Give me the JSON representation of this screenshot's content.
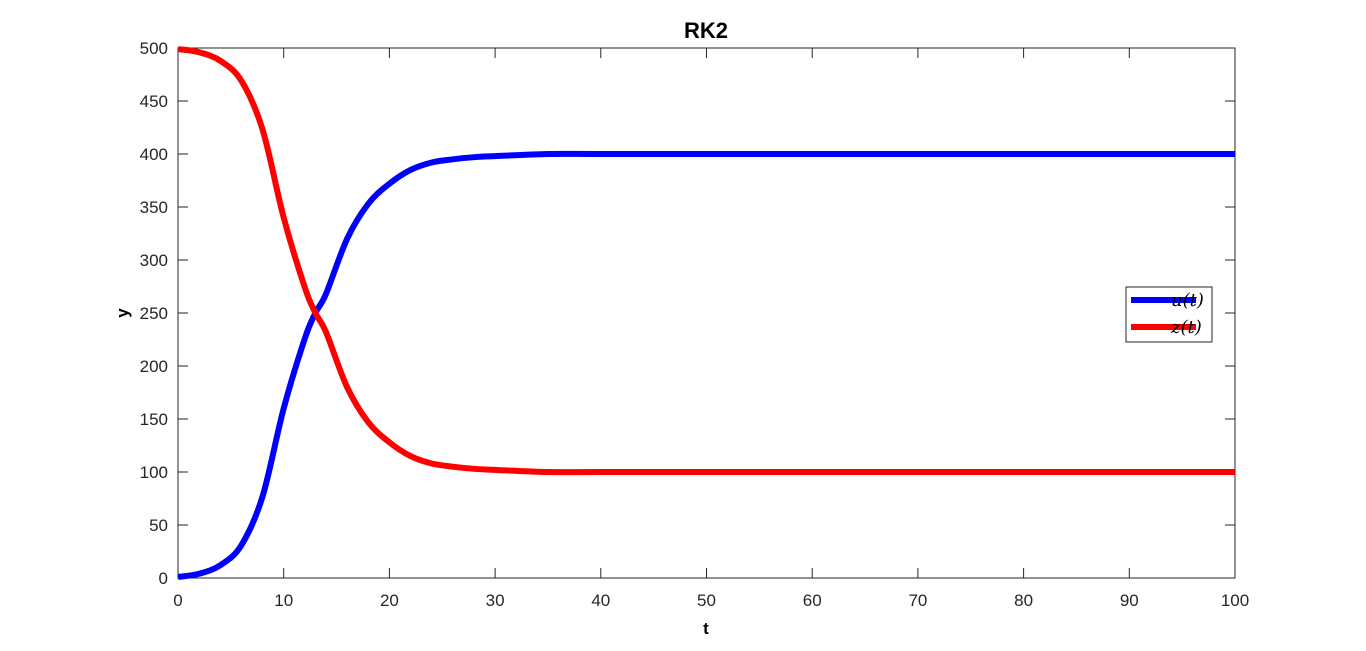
{
  "chart_data": {
    "type": "line",
    "title": "RK2",
    "xlabel": "t",
    "ylabel": "y",
    "xlim": [
      0,
      100
    ],
    "ylim": [
      0,
      500
    ],
    "xticks": [
      0,
      10,
      20,
      30,
      40,
      50,
      60,
      70,
      80,
      90,
      100
    ],
    "yticks": [
      0,
      50,
      100,
      150,
      200,
      250,
      300,
      350,
      400,
      450,
      500
    ],
    "grid": false,
    "legend_position": "right",
    "series": [
      {
        "name": "u(t)",
        "color": "#0000ff",
        "x": [
          0,
          2,
          4,
          6,
          8,
          10,
          12,
          13,
          14,
          16,
          18,
          20,
          22,
          24,
          26,
          28,
          30,
          35,
          40,
          50,
          60,
          70,
          80,
          90,
          100
        ],
        "y": [
          1,
          4,
          12,
          31,
          77,
          160,
          226,
          250,
          268,
          320,
          353,
          372,
          385,
          392,
          395,
          397,
          398,
          400,
          400,
          400,
          400,
          400,
          400,
          400,
          400
        ]
      },
      {
        "name": "z(t)",
        "color": "#ff0000",
        "x": [
          0,
          2,
          4,
          6,
          8,
          10,
          12,
          13,
          14,
          16,
          18,
          20,
          22,
          24,
          26,
          28,
          30,
          35,
          40,
          50,
          60,
          70,
          80,
          90,
          100
        ],
        "y": [
          499,
          496,
          488,
          469,
          423,
          340,
          274,
          250,
          232,
          180,
          147,
          128,
          115,
          108,
          105,
          103,
          102,
          100,
          100,
          100,
          100,
          100,
          100,
          100,
          100
        ]
      }
    ]
  }
}
